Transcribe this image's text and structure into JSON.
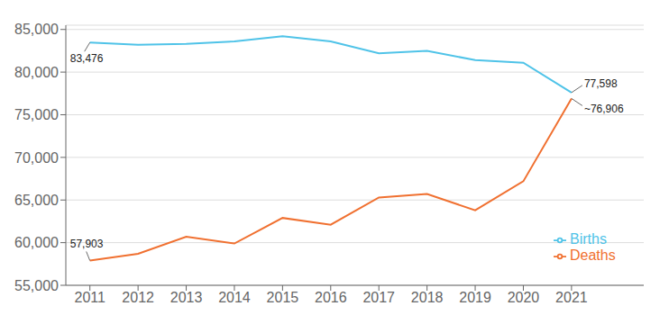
{
  "chart_data": {
    "type": "line",
    "x": [
      2011,
      2012,
      2013,
      2014,
      2015,
      2016,
      2017,
      2018,
      2019,
      2020,
      2021
    ],
    "series": [
      {
        "name": "Births",
        "color": "#4fc3e8",
        "values": [
          83476,
          83200,
          83300,
          83600,
          84200,
          83600,
          82200,
          82500,
          81400,
          81100,
          77598
        ]
      },
      {
        "name": "Deaths",
        "color": "#f07030",
        "values": [
          57903,
          58700,
          60700,
          59900,
          62900,
          62100,
          65300,
          65700,
          63800,
          67200,
          76906
        ]
      }
    ],
    "xlim": [
      2010.5,
      2022.5
    ],
    "xticks": [
      2011,
      2012,
      2013,
      2014,
      2015,
      2016,
      2017,
      2018,
      2019,
      2020,
      2021
    ],
    "ylim": [
      55000,
      85500
    ],
    "yticks": [
      {
        "value": 55000,
        "label": "55,000"
      },
      {
        "value": 60000,
        "label": "60,000"
      },
      {
        "value": 65000,
        "label": "65,000"
      },
      {
        "value": 70000,
        "label": "70,000"
      },
      {
        "value": 75000,
        "label": "75,000"
      },
      {
        "value": 80000,
        "label": "80,000"
      },
      {
        "value": 85000,
        "label": "85,000"
      }
    ],
    "grid": "y",
    "legend": "lower right",
    "annotations": [
      {
        "text": "83,476",
        "x": 2011,
        "y": 83476
      },
      {
        "text": "57,903",
        "x": 2011,
        "y": 57903
      },
      {
        "text": "77,598",
        "x": 2021,
        "y": 77598
      },
      {
        "text": "~76,906",
        "x": 2021,
        "y": 76906
      }
    ]
  }
}
